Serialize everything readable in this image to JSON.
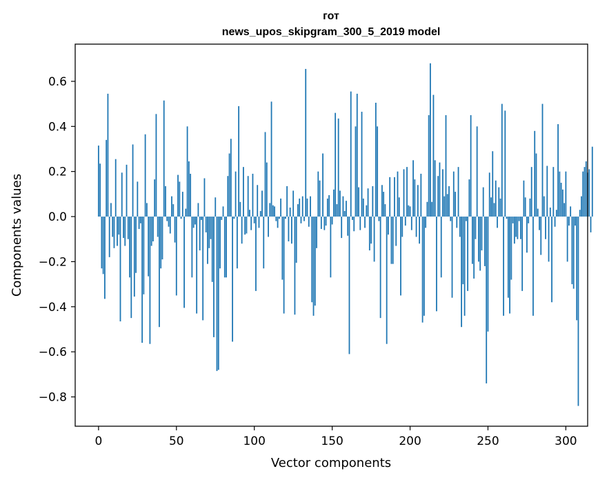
{
  "chart_data": {
    "type": "bar",
    "title_line1": "гот",
    "title_line2": "news_upos_skipgram_300_5_2019 model",
    "xlabel": "Vector components",
    "ylabel": "Components values",
    "xlim": [
      -15,
      314
    ],
    "ylim": [
      -0.93,
      0.765
    ],
    "x_ticks": [
      0,
      50,
      100,
      150,
      200,
      250,
      300
    ],
    "x_tick_labels": [
      "0",
      "50",
      "100",
      "150",
      "200",
      "250",
      "300"
    ],
    "y_ticks": [
      -0.8,
      -0.6,
      -0.4,
      -0.2,
      0.0,
      0.2,
      0.4,
      0.6
    ],
    "y_tick_labels": [
      "−0.8",
      "−0.6",
      "−0.4",
      "−0.2",
      "0.0",
      "0.2",
      "0.4",
      "0.6"
    ],
    "bar_color": "#1f77b4",
    "grid": false,
    "values": [
      0.315,
      0.235,
      -0.23,
      -0.255,
      -0.365,
      0.34,
      0.545,
      -0.18,
      0.06,
      -0.09,
      -0.14,
      0.255,
      -0.13,
      -0.08,
      -0.465,
      0.195,
      -0.095,
      -0.13,
      0.23,
      -0.1,
      -0.27,
      -0.45,
      0.32,
      -0.355,
      -0.25,
      0.155,
      -0.055,
      -0.03,
      -0.56,
      -0.345,
      0.365,
      0.06,
      -0.265,
      -0.565,
      -0.13,
      -0.11,
      0.165,
      0.455,
      -0.09,
      -0.49,
      -0.23,
      -0.19,
      0.515,
      0.135,
      -0.02,
      -0.045,
      -0.075,
      0.09,
      0.055,
      -0.115,
      -0.35,
      0.185,
      0.155,
      -0.01,
      0.11,
      -0.405,
      0.035,
      0.4,
      0.245,
      0.19,
      -0.27,
      -0.05,
      -0.035,
      -0.43,
      0.06,
      -0.15,
      -0.015,
      -0.46,
      0.17,
      -0.07,
      -0.21,
      -0.14,
      -0.1,
      -0.29,
      -0.535,
      0.085,
      -0.685,
      -0.68,
      -0.23,
      -0.015,
      0.045,
      -0.27,
      -0.27,
      0.18,
      0.28,
      0.345,
      -0.555,
      -0.01,
      0.2,
      -0.23,
      0.49,
      0.065,
      -0.12,
      0.22,
      -0.08,
      -0.075,
      0.18,
      0.03,
      -0.06,
      0.19,
      -0.03,
      -0.33,
      0.14,
      -0.05,
      0.025,
      0.115,
      -0.23,
      0.375,
      0.24,
      -0.09,
      0.06,
      0.51,
      0.05,
      0.045,
      -0.02,
      -0.05,
      -0.01,
      0.08,
      -0.28,
      -0.43,
      -0.01,
      0.135,
      -0.11,
      0.04,
      -0.12,
      0.115,
      -0.435,
      -0.205,
      0.055,
      0.08,
      -0.03,
      0.09,
      -0.02,
      0.655,
      0.08,
      -0.045,
      0.09,
      -0.38,
      -0.44,
      -0.395,
      -0.14,
      0.2,
      0.16,
      -0.055,
      0.28,
      -0.06,
      -0.04,
      0.08,
      0.095,
      -0.27,
      -0.035,
      0.12,
      0.46,
      0.055,
      0.435,
      0.115,
      -0.095,
      0.09,
      0.025,
      0.07,
      -0.085,
      -0.61,
      0.555,
      -0.015,
      -0.065,
      0.4,
      0.545,
      0.13,
      -0.06,
      0.465,
      0.08,
      -0.05,
      0.05,
      0.125,
      -0.15,
      -0.12,
      0.135,
      -0.2,
      0.505,
      0.4,
      -0.02,
      -0.45,
      0.14,
      0.11,
      0.055,
      -0.565,
      -0.08,
      0.175,
      -0.21,
      -0.21,
      0.175,
      -0.13,
      0.2,
      0.085,
      -0.35,
      -0.09,
      0.21,
      -0.04,
      0.22,
      0.05,
      0.045,
      -0.06,
      0.25,
      0.165,
      -0.09,
      0.14,
      -0.12,
      0.19,
      -0.47,
      -0.44,
      -0.05,
      0.065,
      0.45,
      0.68,
      0.065,
      0.54,
      0.25,
      -0.42,
      0.18,
      0.24,
      -0.27,
      0.21,
      0.09,
      0.45,
      0.1,
      0.135,
      -0.02,
      -0.36,
      0.2,
      0.11,
      -0.05,
      0.22,
      -0.09,
      -0.49,
      -0.3,
      -0.44,
      -0.02,
      -0.33,
      0.165,
      0.45,
      -0.21,
      -0.275,
      -0.1,
      0.4,
      -0.2,
      -0.24,
      -0.15,
      0.13,
      -0.22,
      -0.74,
      -0.51,
      0.195,
      0.085,
      0.29,
      0.06,
      0.16,
      -0.05,
      0.13,
      0.08,
      0.5,
      -0.44,
      0.47,
      -0.01,
      -0.36,
      -0.43,
      -0.28,
      -0.03,
      -0.12,
      -0.09,
      -0.1,
      -0.02,
      -0.1,
      -0.33,
      0.16,
      0.085,
      -0.16,
      -0.03,
      0.08,
      0.22,
      -0.44,
      0.38,
      0.28,
      0.035,
      -0.06,
      -0.17,
      0.5,
      0.09,
      -0.1,
      0.225,
      -0.2,
      0.04,
      -0.38,
      0.22,
      -0.045,
      0.03,
      0.41,
      0.2,
      0.15,
      0.12,
      0.06,
      0.2,
      -0.2,
      -0.04,
      0.045,
      -0.3,
      -0.32,
      -0.04,
      -0.46,
      -0.84,
      0.03,
      0.09,
      0.2,
      0.22,
      0.245,
      0.195,
      0.21,
      -0.07,
      0.31
    ]
  }
}
